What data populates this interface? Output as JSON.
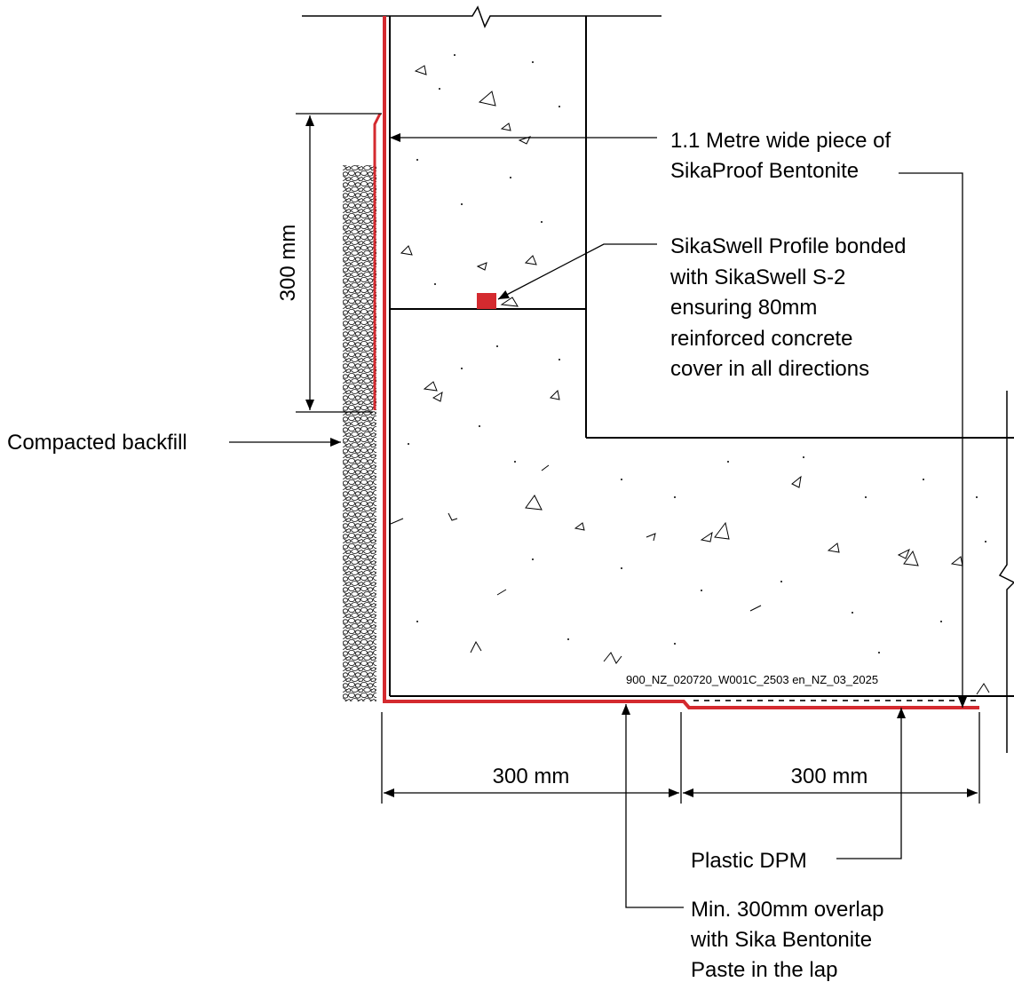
{
  "labels": {
    "bentonite": [
      "1.1 Metre wide piece of",
      "SikaProof Bentonite"
    ],
    "sikaswell": [
      "SikaSwell Profile bonded",
      "with SikaSwell S-2",
      "ensuring 80mm",
      "reinforced concrete",
      "cover in all directions"
    ],
    "backfill": "Compacted backfill",
    "dpm": "Plastic DPM",
    "overlap": [
      "Min. 300mm overlap",
      "with Sika Bentonite",
      "Paste in the lap"
    ],
    "drawing_ref": "900_NZ_020720_W001C_2503 en_NZ_03_2025"
  },
  "dimensions": {
    "vertical": "300 mm",
    "horizontal_left": "300 mm",
    "horizontal_right": "300 mm"
  },
  "colors": {
    "membrane": "#d42a2f",
    "line": "#000000"
  }
}
